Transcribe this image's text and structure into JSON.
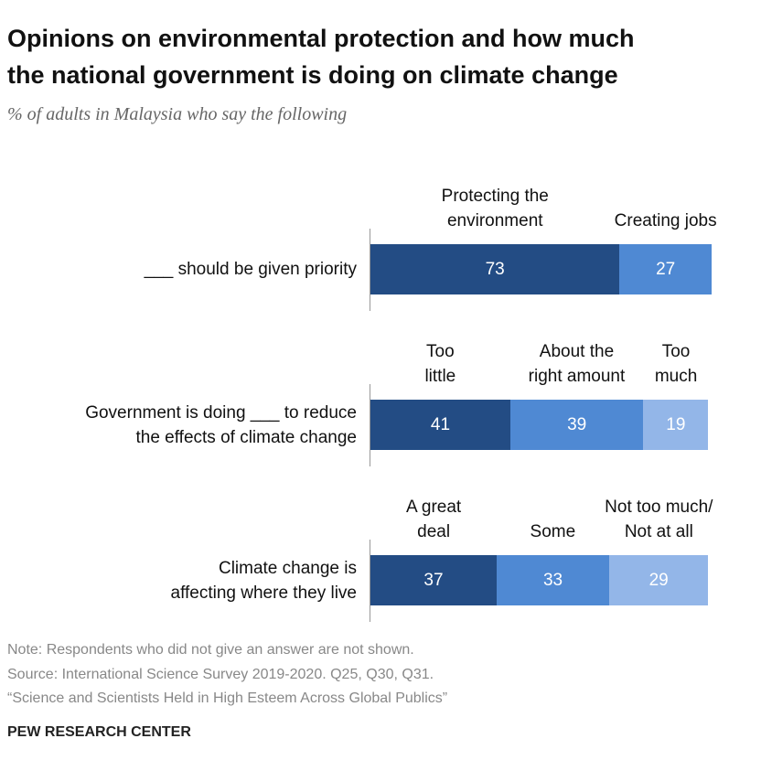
{
  "header": {
    "title": "Opinions on environmental protection and how much\nthe national government is doing on climate change",
    "subtitle": "% of adults in Malaysia who say the following"
  },
  "chart_data": [
    {
      "type": "bar",
      "orientation": "horizontal",
      "stacked": true,
      "xlim": [
        0,
        100
      ],
      "categories": [
        "___ should be given priority"
      ],
      "series": [
        {
          "name": "Protecting the\nenvironment",
          "color": "#234c84",
          "values": [
            73
          ]
        },
        {
          "name": "Creating jobs",
          "color": "#4f89d3",
          "values": [
            27
          ]
        }
      ]
    },
    {
      "type": "bar",
      "orientation": "horizontal",
      "stacked": true,
      "xlim": [
        0,
        100
      ],
      "categories": [
        "Government is doing ___ to reduce\nthe effects of climate change"
      ],
      "series": [
        {
          "name": "Too\nlittle",
          "color": "#234c84",
          "values": [
            41
          ]
        },
        {
          "name": "About the\nright amount",
          "color": "#4f89d3",
          "values": [
            39
          ]
        },
        {
          "name": "Too\nmuch",
          "color": "#93b6e8",
          "values": [
            19
          ]
        }
      ]
    },
    {
      "type": "bar",
      "orientation": "horizontal",
      "stacked": true,
      "xlim": [
        0,
        100
      ],
      "categories": [
        "Climate change is\naffecting where they live"
      ],
      "series": [
        {
          "name": "A great\ndeal",
          "color": "#234c84",
          "values": [
            37
          ]
        },
        {
          "name": "Some",
          "color": "#4f89d3",
          "values": [
            33
          ]
        },
        {
          "name": "Not too much/\nNot at all",
          "color": "#93b6e8",
          "values": [
            29
          ]
        }
      ]
    }
  ],
  "footer": {
    "note": "Note: Respondents who did not give an answer are not shown.",
    "source": "Source: International Science Survey 2019-2020. Q25, Q30, Q31.",
    "report": "“Science and Scientists Held in High Esteem Across Global Publics”",
    "brand": "PEW RESEARCH CENTER"
  }
}
